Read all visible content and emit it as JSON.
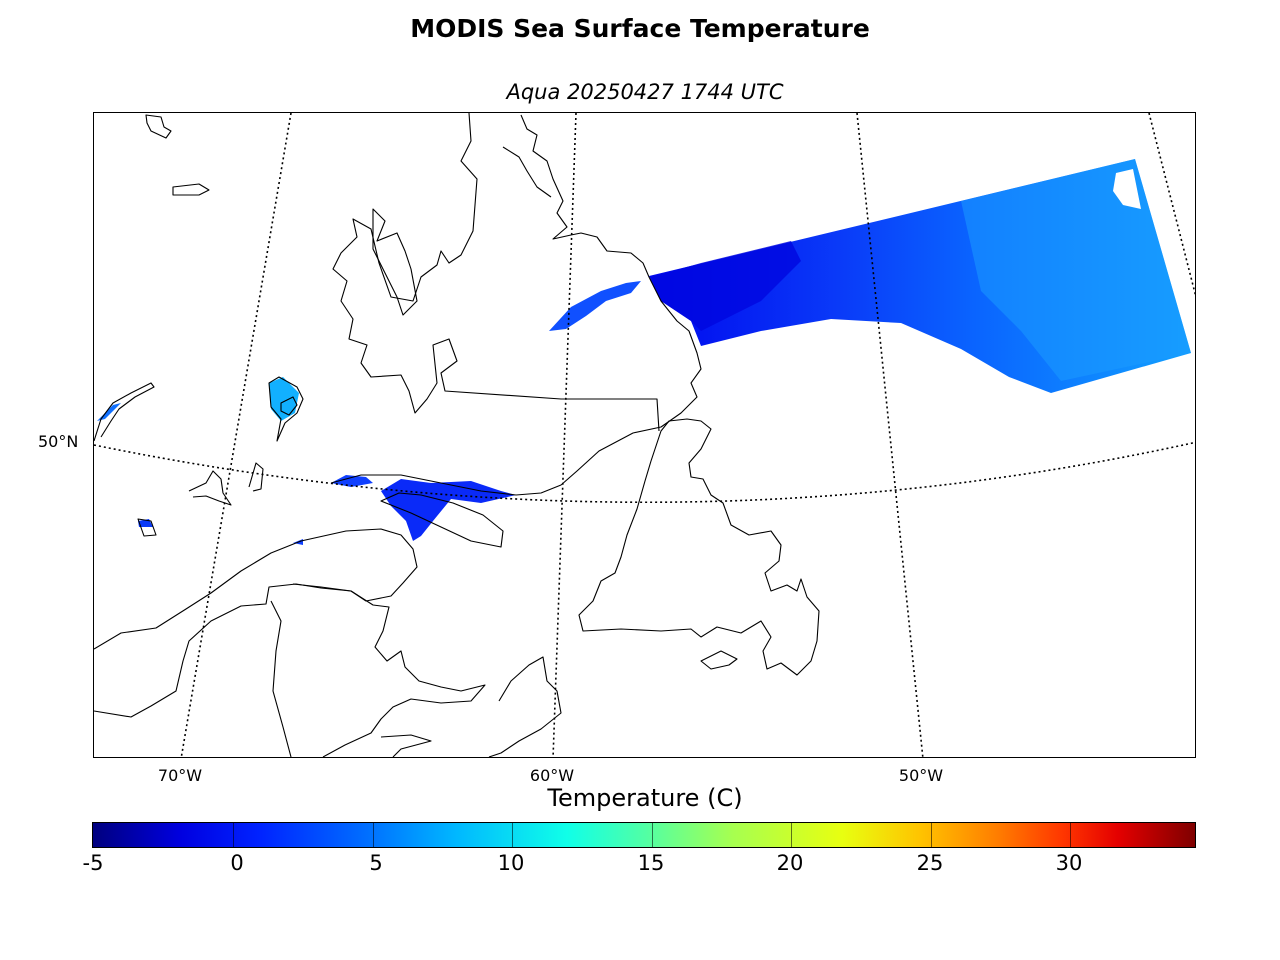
{
  "figure": {
    "title": "MODIS Sea Surface Temperature",
    "subtitle": "Aqua 20250427 1744 UTC"
  },
  "map": {
    "latitude_labels": [
      "50°N"
    ],
    "longitude_labels": [
      "70°W",
      "60°W",
      "50°W"
    ],
    "sst_swath_color": "#0a1ff0",
    "coastline_color": "#000000",
    "graticule_style": "dotted"
  },
  "colorbar": {
    "title": "Temperature (C)",
    "ticks": [
      "-5",
      "0",
      "5",
      "10",
      "15",
      "20",
      "25",
      "30"
    ],
    "range": [
      -5,
      34.5
    ],
    "colormap": "jet"
  }
}
